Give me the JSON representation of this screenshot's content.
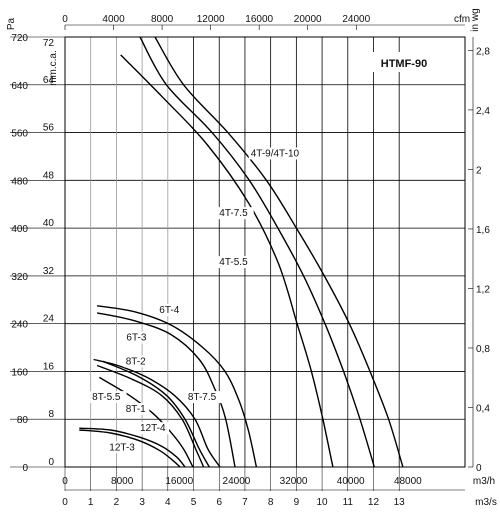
{
  "chart_data": {
    "type": "line",
    "title": "HTMF-90",
    "x_axis_bottom": {
      "unit": "m3/h",
      "range": [
        0,
        56000
      ],
      "ticks": [
        "0",
        "8000",
        "16000",
        "24000",
        "32000",
        "40000",
        "48000"
      ]
    },
    "x_axis_bottom2": {
      "unit": "m3/s",
      "range": [
        0,
        15.56
      ],
      "ticks": [
        "0",
        "1",
        "2",
        "3",
        "4",
        "5",
        "6",
        "7",
        "8",
        "9",
        "10",
        "11",
        "12",
        "13"
      ]
    },
    "x_axis_top": {
      "unit": "cfm",
      "range": [
        0,
        32960
      ],
      "ticks": [
        "0",
        "4000",
        "8000",
        "12000",
        "16000",
        "20000",
        "24000"
      ]
    },
    "y_axis_left": {
      "unit": "Pa",
      "range": [
        0,
        720
      ],
      "ticks": [
        "0",
        "80",
        "160",
        "240",
        "320",
        "400",
        "480",
        "560",
        "640",
        "720"
      ]
    },
    "y_axis_left2": {
      "unit": "mm.c.a.",
      "range": [
        0,
        72
      ],
      "ticks": [
        "0",
        "8",
        "16",
        "24",
        "32",
        "40",
        "48",
        "56",
        "64",
        "72"
      ]
    },
    "y_axis_right": {
      "unit": "in wg",
      "range": [
        0,
        2.89
      ],
      "ticks": [
        "0",
        "0,4",
        "0,8",
        "1,2",
        "1,6",
        "2",
        "2,4",
        "2,8"
      ]
    },
    "grid": true,
    "series": [
      {
        "name": "4T-9/4T-10",
        "points": [
          [
            12600,
            720
          ],
          [
            16600,
            640
          ],
          [
            22800,
            560
          ],
          [
            28200,
            480
          ],
          [
            32400,
            400
          ],
          [
            36300,
            320
          ],
          [
            39800,
            240
          ],
          [
            42700,
            160
          ],
          [
            45300,
            80
          ],
          [
            47300,
            0
          ]
        ]
      },
      {
        "name": "4T-7.5",
        "points": [
          [
            10500,
            720
          ],
          [
            14200,
            640
          ],
          [
            20600,
            560
          ],
          [
            25800,
            480
          ],
          [
            29800,
            400
          ],
          [
            33400,
            320
          ],
          [
            36400,
            240
          ],
          [
            39000,
            160
          ],
          [
            41300,
            80
          ],
          [
            43300,
            0
          ]
        ]
      },
      {
        "name": "4T-5.5",
        "points": [
          [
            7800,
            690
          ],
          [
            13600,
            620
          ],
          [
            19900,
            540
          ],
          [
            25800,
            440
          ],
          [
            29900,
            340
          ],
          [
            32500,
            240
          ],
          [
            34500,
            160
          ],
          [
            36100,
            80
          ],
          [
            37500,
            0
          ]
        ]
      },
      {
        "name": "6T-4",
        "points": [
          [
            4500,
            270
          ],
          [
            9700,
            260
          ],
          [
            14800,
            238
          ],
          [
            19300,
            200
          ],
          [
            22400,
            160
          ],
          [
            24400,
            110
          ],
          [
            25700,
            60
          ],
          [
            26800,
            0
          ]
        ]
      },
      {
        "name": "6T-3",
        "points": [
          [
            4500,
            258
          ],
          [
            9700,
            245
          ],
          [
            14800,
            222
          ],
          [
            18800,
            180
          ],
          [
            21000,
            130
          ],
          [
            22500,
            80
          ],
          [
            23800,
            0
          ]
        ]
      },
      {
        "name": "8T-7.5",
        "points": [
          [
            4000,
            180
          ],
          [
            7400,
            170
          ],
          [
            11500,
            150
          ],
          [
            15300,
            120
          ],
          [
            18200,
            80
          ],
          [
            20000,
            30
          ],
          [
            21700,
            0
          ]
        ]
      },
      {
        "name": "8T-5.5",
        "points": [
          [
            5300,
            177
          ],
          [
            10200,
            152
          ],
          [
            14200,
            120
          ],
          [
            16800,
            80
          ],
          [
            18800,
            30
          ],
          [
            20200,
            0
          ]
        ]
      },
      {
        "name": "8T-2",
        "points": [
          [
            4500,
            170
          ],
          [
            9400,
            147
          ],
          [
            13500,
            120
          ],
          [
            16400,
            80
          ],
          [
            18300,
            30
          ],
          [
            19400,
            0
          ]
        ]
      },
      {
        "name": "8T-1",
        "points": [
          [
            4800,
            150
          ],
          [
            9000,
            120
          ],
          [
            12300,
            90
          ],
          [
            14700,
            60
          ],
          [
            16600,
            30
          ],
          [
            17900,
            0
          ]
        ]
      },
      {
        "name": "12T-4",
        "points": [
          [
            2000,
            65
          ],
          [
            6400,
            62
          ],
          [
            10400,
            50
          ],
          [
            13500,
            35
          ],
          [
            15600,
            17
          ],
          [
            16800,
            0
          ]
        ]
      },
      {
        "name": "12T-3",
        "points": [
          [
            2000,
            62
          ],
          [
            6400,
            57
          ],
          [
            10400,
            44
          ],
          [
            13200,
            28
          ],
          [
            15000,
            12
          ],
          [
            16100,
            0
          ]
        ]
      }
    ]
  }
}
